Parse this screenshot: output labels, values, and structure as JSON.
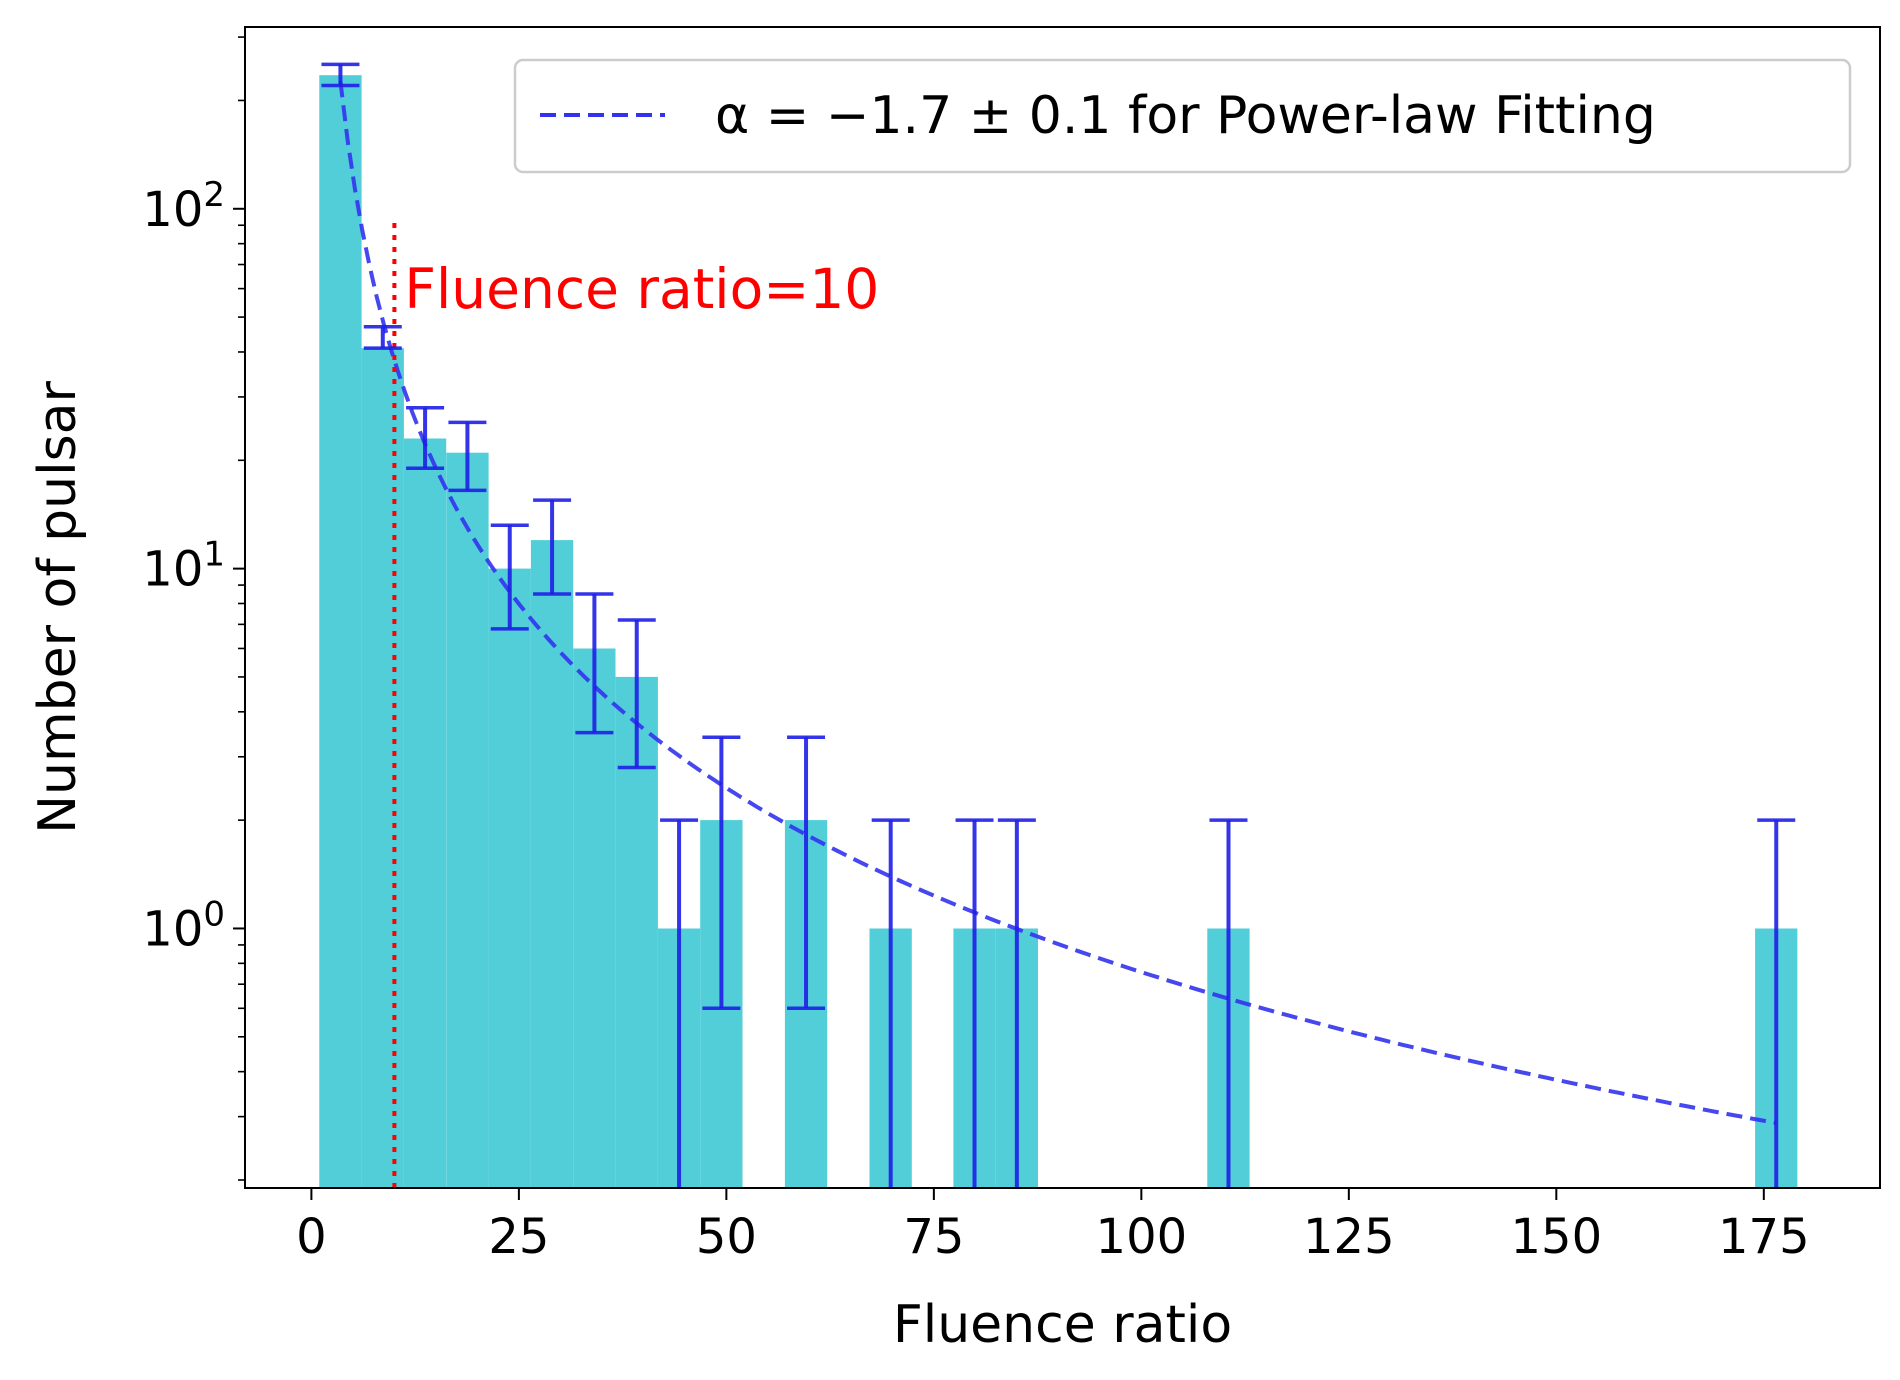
{
  "chart_data": {
    "type": "bar",
    "xlabel": "Fluence ratio",
    "ylabel": "Number of pulsar",
    "xlim": [
      -8,
      189
    ],
    "ylim": [
      0.19,
      320
    ],
    "y_scale": "log",
    "x_ticks": [
      0,
      25,
      50,
      75,
      100,
      125,
      150,
      175
    ],
    "x_tick_labels": [
      "0",
      "25",
      "50",
      "75",
      "100",
      "125",
      "150",
      "175"
    ],
    "y_major_ticks": [
      1,
      10,
      100
    ],
    "y_tick_base": "10",
    "y_tick_exponents": [
      "0",
      "1",
      "2"
    ],
    "grid": false,
    "bin_width": 5.1,
    "bins": [
      {
        "x": 3.5,
        "count": 235,
        "err_low": 220,
        "err_high": 252
      },
      {
        "x": 8.6,
        "count": 41,
        "err_low": 41,
        "err_high": 47
      },
      {
        "x": 13.7,
        "count": 23,
        "err_low": 19,
        "err_high": 28
      },
      {
        "x": 18.8,
        "count": 21,
        "err_low": 16.5,
        "err_high": 25.5
      },
      {
        "x": 23.9,
        "count": 10,
        "err_low": 6.8,
        "err_high": 13.2
      },
      {
        "x": 29.0,
        "count": 12,
        "err_low": 8.5,
        "err_high": 15.5
      },
      {
        "x": 34.1,
        "count": 6,
        "err_low": 3.5,
        "err_high": 8.5
      },
      {
        "x": 39.2,
        "count": 5,
        "err_low": 2.8,
        "err_high": 7.2
      },
      {
        "x": 44.3,
        "count": 1,
        "err_low": 0.001,
        "err_high": 2
      },
      {
        "x": 49.4,
        "count": 2,
        "err_low": 0.6,
        "err_high": 3.4
      },
      {
        "x": 59.6,
        "count": 2,
        "err_low": 0.6,
        "err_high": 3.4
      },
      {
        "x": 69.8,
        "count": 1,
        "err_low": 0.001,
        "err_high": 2
      },
      {
        "x": 79.9,
        "count": 1,
        "err_low": 0.001,
        "err_high": 2
      },
      {
        "x": 85.0,
        "count": 1,
        "err_low": 0.001,
        "err_high": 2
      },
      {
        "x": 110.5,
        "count": 1,
        "err_low": 0.001,
        "err_high": 2
      },
      {
        "x": 176.5,
        "count": 1,
        "err_low": 0.001,
        "err_high": 2
      }
    ],
    "fit": {
      "label": "α = −1.7 ± 0.1 for Power-law Fitting",
      "alpha": -1.7,
      "coefficient": 1900,
      "x_range": [
        3.5,
        176.5
      ],
      "color": "#3333ee",
      "style": "dashed"
    },
    "threshold": {
      "x": 10,
      "label": "Fluence ratio=10",
      "color": "#ff0000",
      "style": "dotted"
    },
    "bar_color": "#52ced9",
    "errorbar_color": "#1f1fe6",
    "legend_location": "top-right"
  }
}
